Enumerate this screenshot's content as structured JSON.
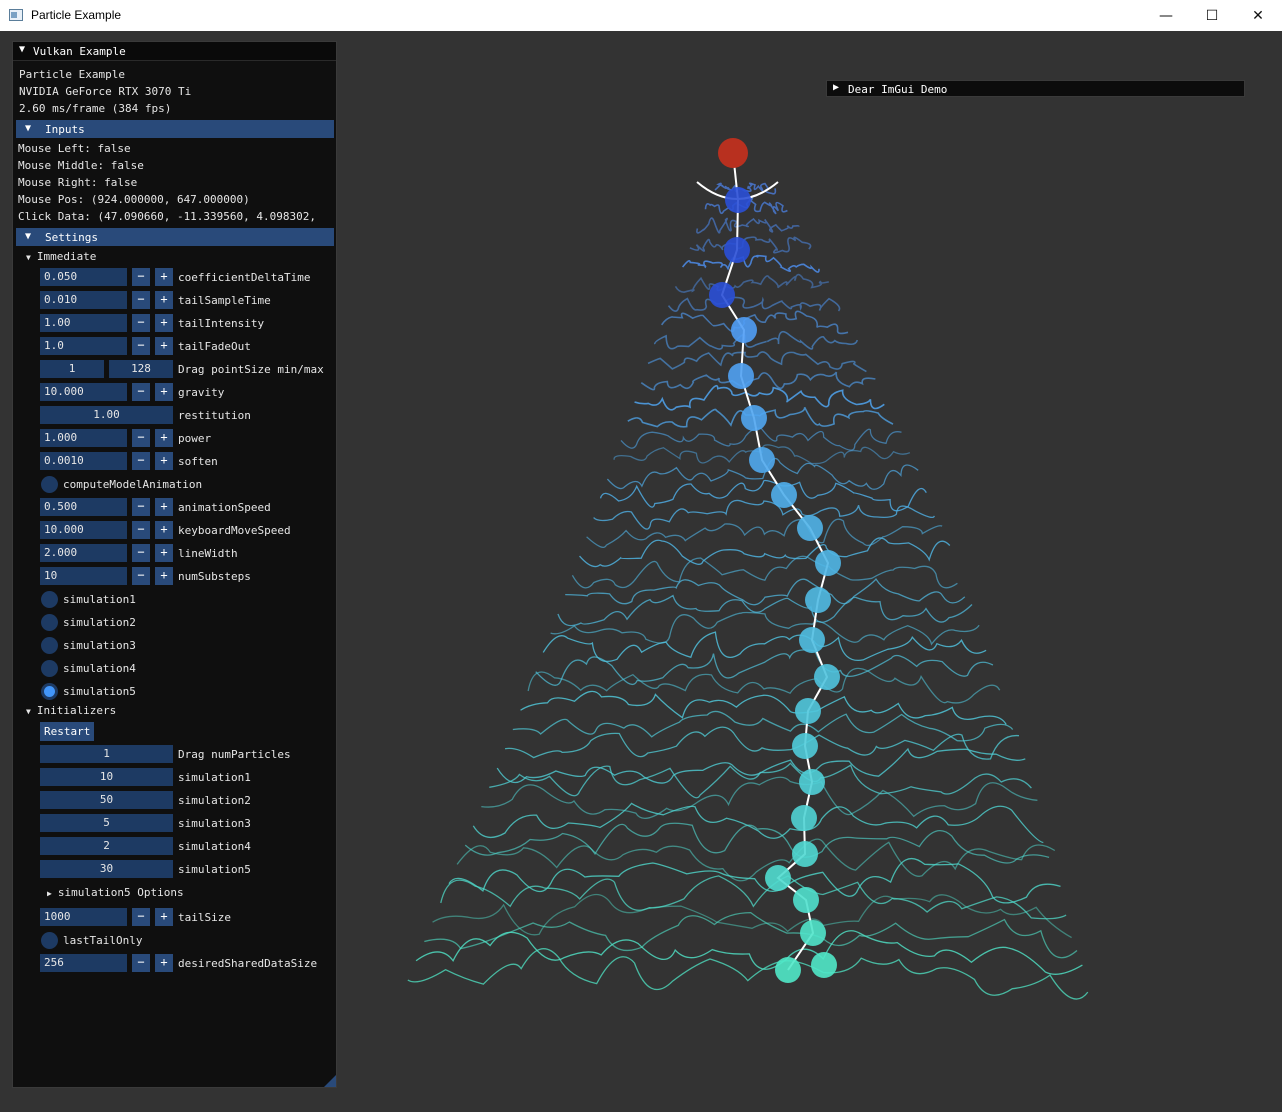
{
  "window": {
    "title": "Particle Example",
    "minimize": "—",
    "maximize": "☐",
    "close": "✕"
  },
  "panel": {
    "title": "Vulkan Example",
    "info": [
      "Particle Example",
      "NVIDIA GeForce RTX 3070 Ti",
      "2.60 ms/frame (384 fps)"
    ],
    "inputs_header": "Inputs",
    "inputs": [
      "Mouse Left: false",
      "Mouse Middle: false",
      "Mouse Right: false",
      "Mouse Pos: (924.000000, 647.000000)",
      "Click Data: (47.090660, -11.339560, 4.098302,"
    ],
    "settings_header": "Settings",
    "immediate_label": "Immediate",
    "minus": "−",
    "plus": "+",
    "coefficientDeltaTime": {
      "value": "0.050",
      "label": "coefficientDeltaTime"
    },
    "tailSampleTime": {
      "value": "0.010",
      "label": "tailSampleTime"
    },
    "tailIntensity": {
      "value": "1.00",
      "label": "tailIntensity"
    },
    "tailFadeOut": {
      "value": "1.0",
      "label": "tailFadeOut"
    },
    "pointSize": {
      "min": "1",
      "max": "128",
      "label": "Drag pointSize min/max"
    },
    "gravity": {
      "value": "10.000",
      "label": "gravity"
    },
    "restitution": {
      "value": "1.00",
      "label": "restitution"
    },
    "power": {
      "value": "1.000",
      "label": "power"
    },
    "soften": {
      "value": "0.0010",
      "label": "soften"
    },
    "computeModelAnimation": {
      "label": "computeModelAnimation",
      "checked": false
    },
    "animationSpeed": {
      "value": "0.500",
      "label": "animationSpeed"
    },
    "keyboardMoveSpeed": {
      "value": "10.000",
      "label": "keyboardMoveSpeed"
    },
    "lineWidth": {
      "value": "2.000",
      "label": "lineWidth"
    },
    "numSubsteps": {
      "value": "10",
      "label": "numSubsteps"
    },
    "simulations": [
      {
        "label": "simulation1",
        "selected": false
      },
      {
        "label": "simulation2",
        "selected": false
      },
      {
        "label": "simulation3",
        "selected": false
      },
      {
        "label": "simulation4",
        "selected": false
      },
      {
        "label": "simulation5",
        "selected": true
      }
    ],
    "initializers_label": "Initializers",
    "restart": "Restart",
    "numParticles": {
      "value": "1",
      "label": "Drag numParticles"
    },
    "init_sims": [
      {
        "value": "10",
        "label": "simulation1"
      },
      {
        "value": "50",
        "label": "simulation2"
      },
      {
        "value": "5",
        "label": "simulation3"
      },
      {
        "value": "2",
        "label": "simulation4"
      },
      {
        "value": "30",
        "label": "simulation5"
      }
    ],
    "sim5_options": "simulation5 Options",
    "tailSize": {
      "value": "1000",
      "label": "tailSize"
    },
    "lastTailOnly": {
      "label": "lastTailOnly",
      "checked": false
    },
    "desiredSharedDataSize": {
      "value": "256",
      "label": "desiredSharedDataSize"
    }
  },
  "demo_window": {
    "title": "Dear ImGui Demo"
  },
  "colors": {
    "background": "#333333",
    "header": "#294a7a",
    "field": "#1d3a63",
    "accent": "#4296fa",
    "top_particle": "#b8301f"
  }
}
